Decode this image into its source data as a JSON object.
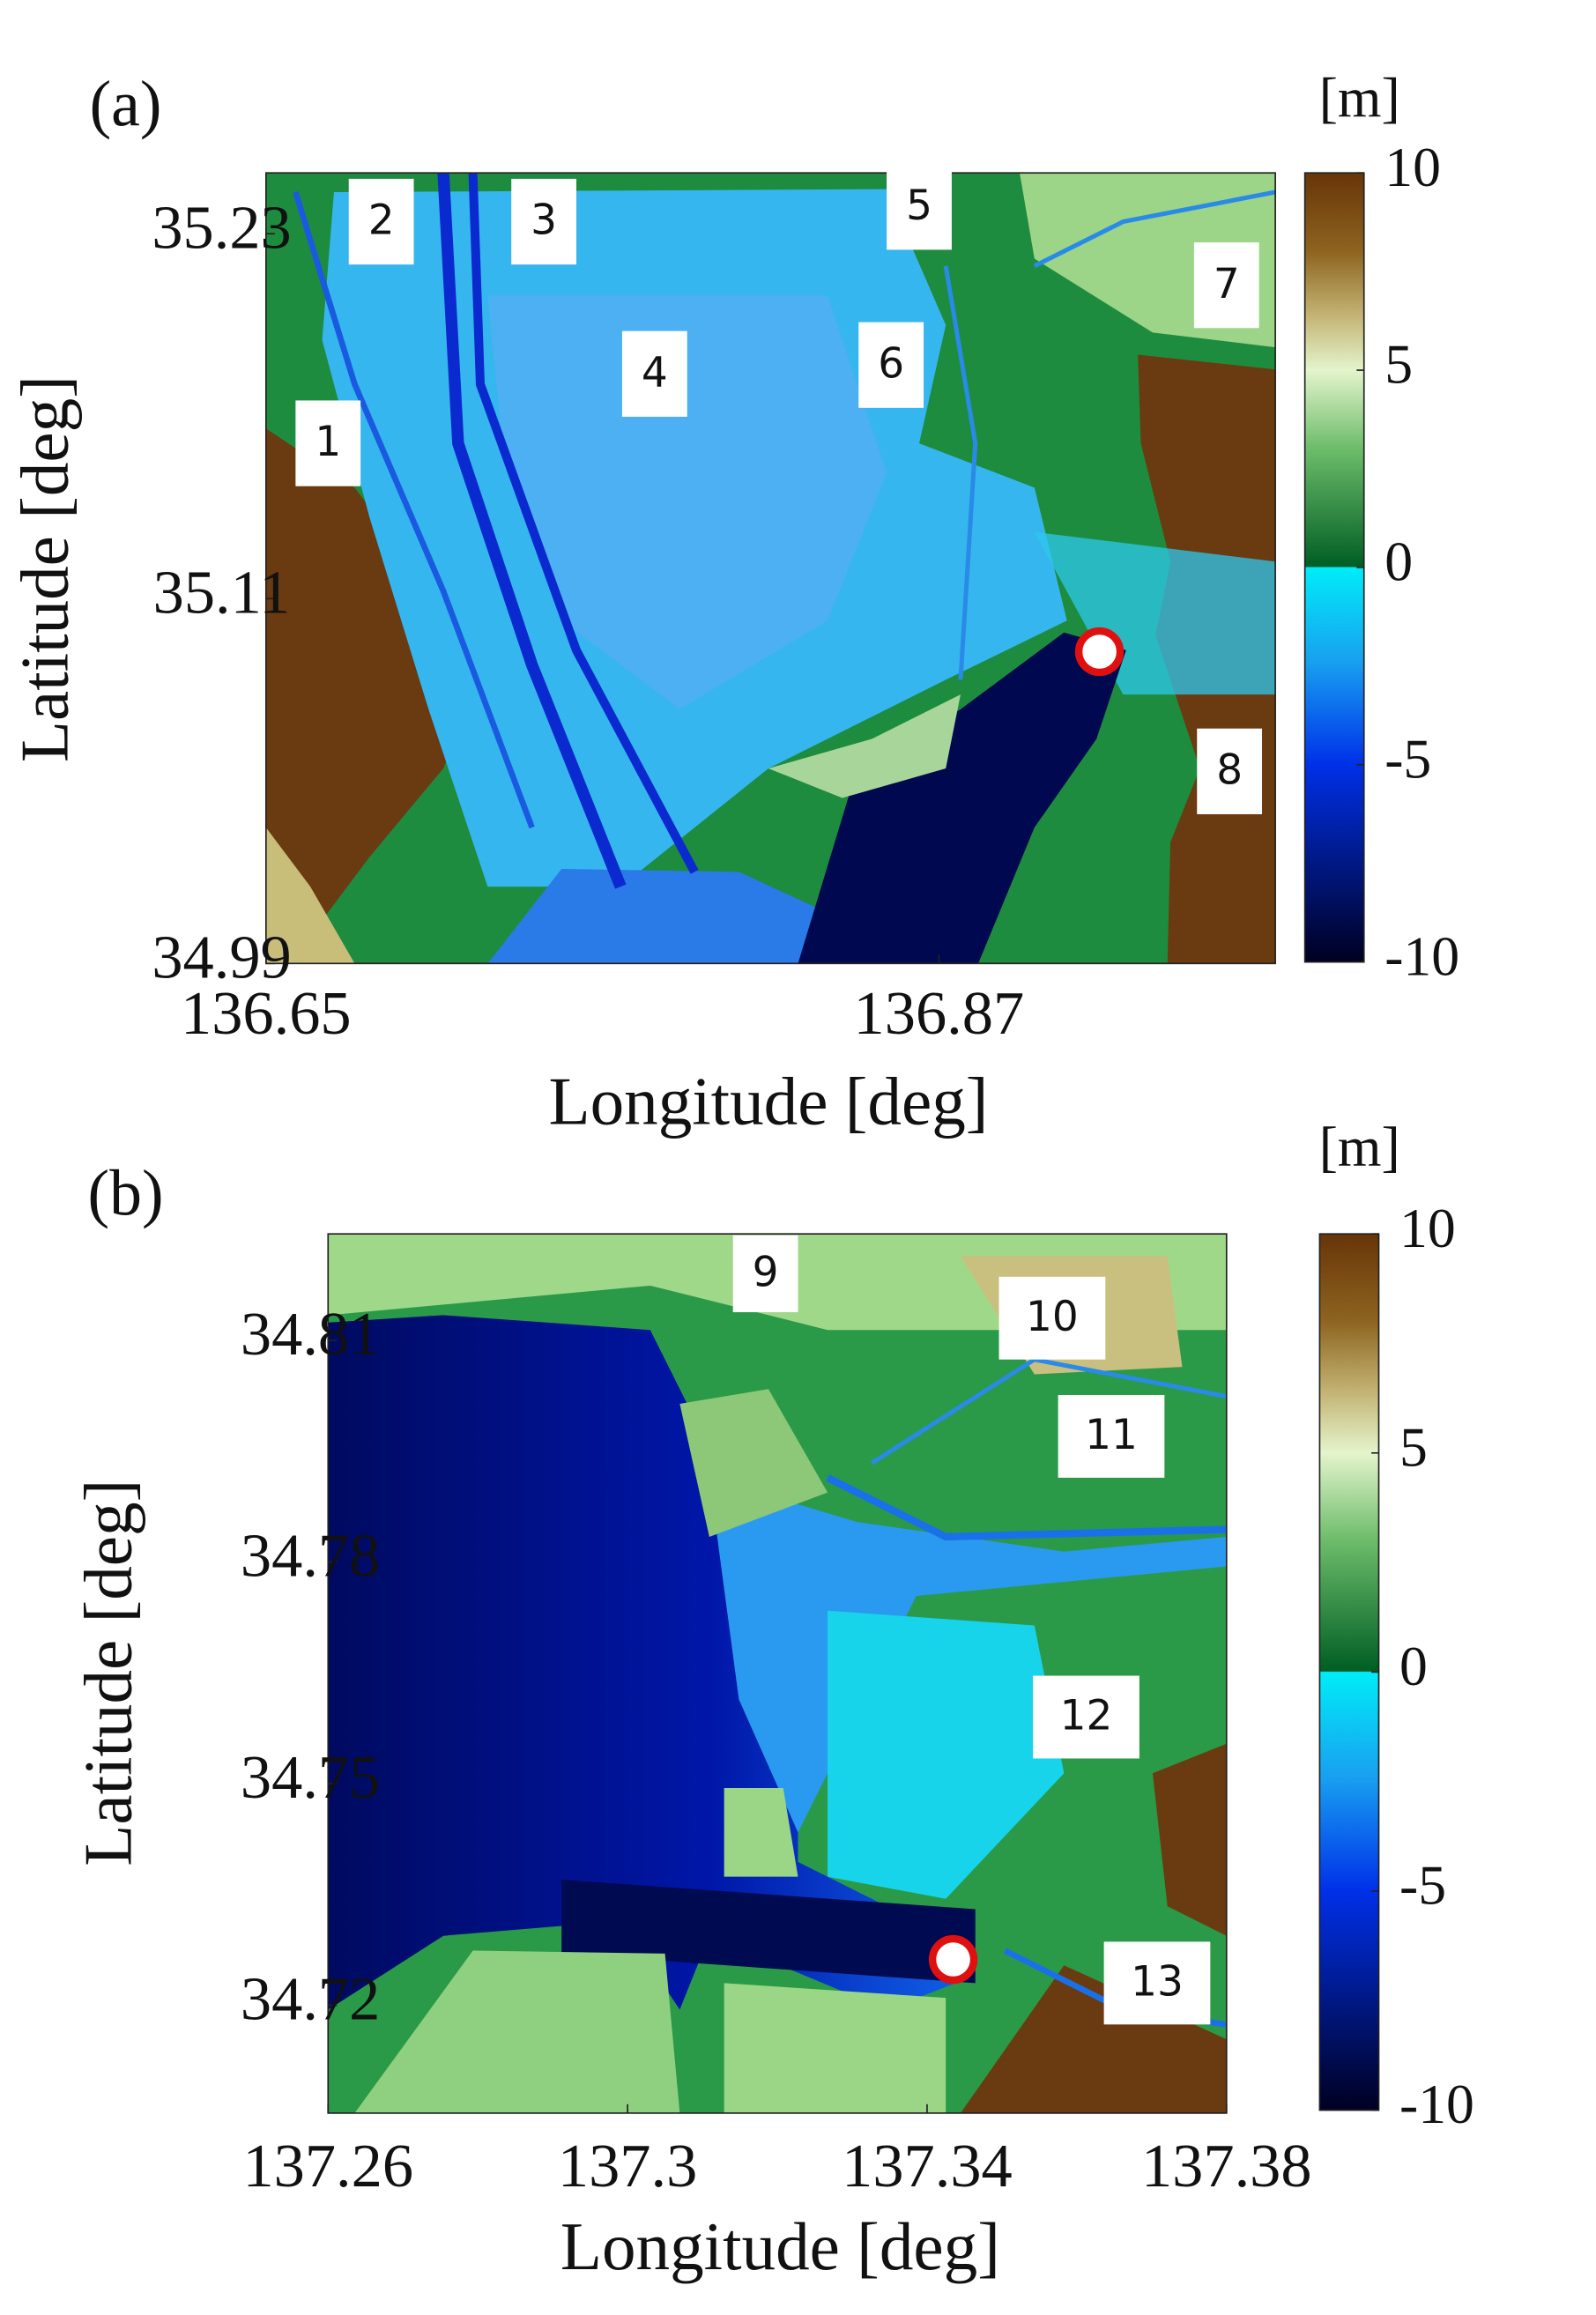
{
  "panels": [
    {
      "label": "(a)",
      "unit": "[m]",
      "xlabel": "Longitude [deg]",
      "ylabel": "Latitude [deg]",
      "xlim": [
        136.65,
        136.98
      ],
      "xticks": [
        136.65,
        136.87
      ],
      "ylim": [
        34.99,
        35.25
      ],
      "yticks": [
        34.99,
        35.11,
        35.23
      ],
      "clim": [
        -10,
        10
      ],
      "cticks": [
        -10,
        -5,
        0,
        5,
        10
      ],
      "regions": [
        "1",
        "2",
        "3",
        "4",
        "5",
        "6",
        "7",
        "8"
      ]
    },
    {
      "label": "(b)",
      "unit": "[m]",
      "xlabel": "Longitude [deg]",
      "ylabel": "Latitude [deg]",
      "xlim": [
        137.26,
        137.38
      ],
      "xticks": [
        137.26,
        137.3,
        137.34,
        137.38
      ],
      "ylim": [
        34.7054,
        34.8244
      ],
      "yticks": [
        34.72,
        34.75,
        34.78,
        34.81
      ],
      "clim": [
        -10,
        10
      ],
      "cticks": [
        -10,
        -5,
        0,
        5,
        10
      ],
      "regions": [
        "9",
        "10",
        "11",
        "12",
        "13"
      ]
    }
  ]
}
